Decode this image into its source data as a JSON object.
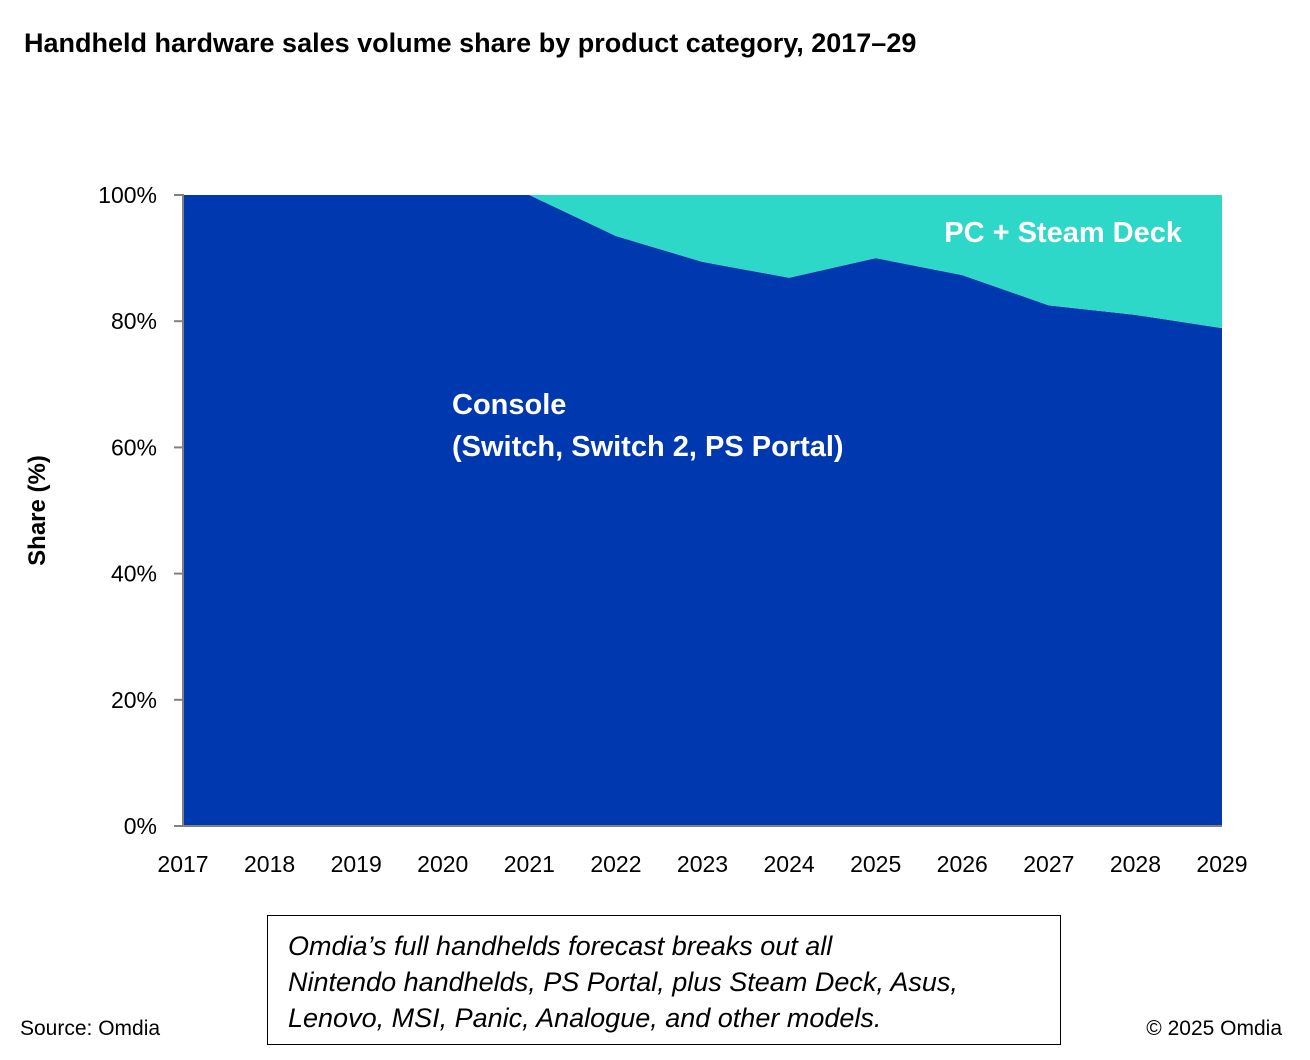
{
  "title": "Handheld hardware sales volume share by product category, 2017–29",
  "chart_data": {
    "type": "area",
    "stacked": true,
    "x": [
      2017,
      2018,
      2019,
      2020,
      2021,
      2022,
      2023,
      2024,
      2025,
      2026,
      2027,
      2028,
      2029
    ],
    "series": [
      {
        "name": "Console",
        "label_lines": [
          "Console",
          "(Switch, Switch 2, PS Portal)"
        ],
        "color": "#0038B0",
        "values": [
          100,
          100,
          100,
          100,
          100,
          93.5,
          89.4,
          86.9,
          90.0,
          87.3,
          82.5,
          81.0,
          78.9
        ]
      },
      {
        "name": "PC + Steam Deck",
        "label_lines": [
          "PC + Steam Deck"
        ],
        "color": "#2ED8C8",
        "values": [
          0,
          0,
          0,
          0,
          0,
          6.5,
          10.6,
          13.1,
          10.0,
          12.7,
          17.5,
          19.0,
          21.1
        ]
      }
    ],
    "ylabel": "Share (%)",
    "ylim": [
      0,
      100
    ],
    "yticks": [
      0,
      20,
      40,
      60,
      80,
      100
    ],
    "ytick_labels": [
      "0%",
      "20%",
      "40%",
      "60%",
      "80%",
      "100%"
    ],
    "grid": false,
    "legend": "inline-labels"
  },
  "note": {
    "lines": [
      "Omdia’s full handhelds forecast breaks out all",
      "Nintendo handhelds, PS Portal, plus Steam Deck, Asus,",
      "Lenovo, MSI, Panic, Analogue, and other models."
    ]
  },
  "footer": {
    "source": "Source: Omdia",
    "copyright": "© 2025 Omdia"
  }
}
